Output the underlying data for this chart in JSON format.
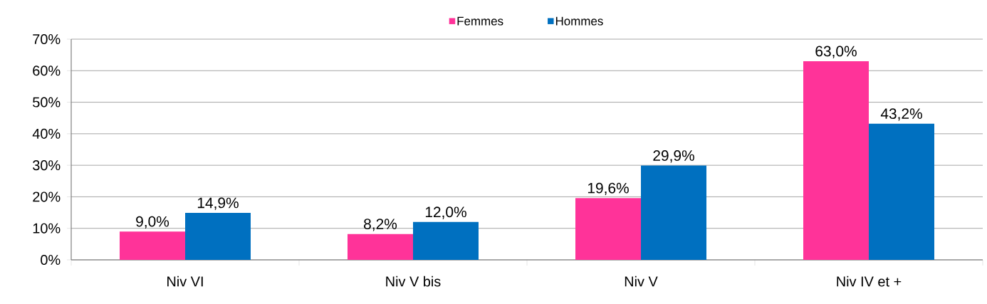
{
  "chart_data": {
    "type": "bar",
    "categories": [
      "Niv VI",
      "Niv V bis",
      "Niv V",
      "Niv IV et +"
    ],
    "series": [
      {
        "name": "Femmes",
        "color": "#ff3399",
        "values": [
          9.0,
          8.2,
          19.6,
          63.0
        ],
        "value_labels": [
          "9,0%",
          "8,2%",
          "19,6%",
          "63,0%"
        ]
      },
      {
        "name": "Hommes",
        "color": "#0070c0",
        "values": [
          14.9,
          12.0,
          29.9,
          43.2
        ],
        "value_labels": [
          "14,9%",
          "12,0%",
          "29,9%",
          "43,2%"
        ]
      }
    ],
    "ylim": [
      0,
      70
    ],
    "yticks": [
      {
        "value": 0,
        "label": "0%"
      },
      {
        "value": 10,
        "label": "10%"
      },
      {
        "value": 20,
        "label": "20%"
      },
      {
        "value": 30,
        "label": "30%"
      },
      {
        "value": 40,
        "label": "40%"
      },
      {
        "value": 50,
        "label": "50%"
      },
      {
        "value": 60,
        "label": "60%"
      },
      {
        "value": 70,
        "label": "70%"
      }
    ],
    "grid": "y",
    "legend": "top"
  }
}
